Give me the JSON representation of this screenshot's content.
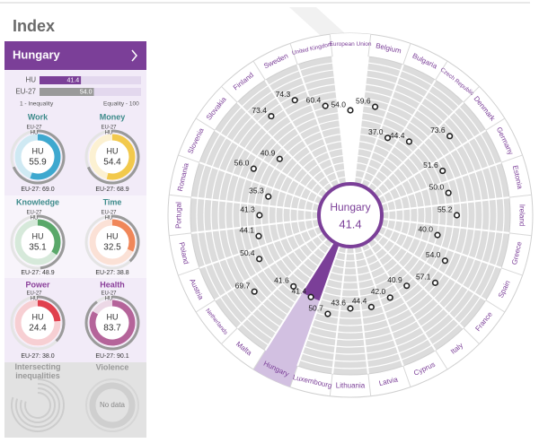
{
  "page": {
    "title": "Index"
  },
  "sidebar": {
    "country": "Hungary",
    "comparison": {
      "categories": [
        "HU",
        "EU-27"
      ],
      "values": [
        41.4,
        54.0
      ],
      "value_labels": [
        "41.4",
        "54.0"
      ],
      "colors": [
        "#7b3f98",
        "#9a9a9a"
      ],
      "xlim": [
        1,
        100
      ],
      "min_label": "1 - Inequality",
      "max_label": "Equality - 100"
    },
    "domains": [
      {
        "name": "Work",
        "color": "#3ea8cf",
        "hu_label": "HU",
        "eu_label": "EU-27",
        "value": 55.9,
        "eu_value": 69.0,
        "eu_value_label": "EU-27: 69.0"
      },
      {
        "name": "Money",
        "color": "#f2c94c",
        "hu_label": "HU",
        "eu_label": "EU-27",
        "value": 54.4,
        "eu_value": 68.9,
        "eu_value_label": "EU-27: 68.9"
      },
      {
        "name": "Knowledge",
        "color": "#5aa86a",
        "hu_label": "HU",
        "eu_label": "EU-27",
        "value": 35.1,
        "eu_value": 48.9,
        "eu_value_label": "EU-27: 48.9"
      },
      {
        "name": "Time",
        "color": "#f0875a",
        "hu_label": "HU",
        "eu_label": "EU-27",
        "value": 32.5,
        "eu_value": 38.8,
        "eu_value_label": "EU-27: 38.8"
      },
      {
        "name": "Power",
        "color": "#e0404e",
        "hu_label": "HU",
        "eu_label": "EU-27",
        "value": 24.4,
        "eu_value": 38.0,
        "eu_value_label": "EU-27: 38.0"
      },
      {
        "name": "Health",
        "color": "#b5649a",
        "hu_label": "HU",
        "eu_label": "EU-27",
        "value": 83.7,
        "eu_value": 90.1,
        "eu_value_label": "EU-27: 90.1"
      },
      {
        "name": "Intersecting inequalities"
      },
      {
        "name": "Violence",
        "no_data": "No data"
      }
    ]
  },
  "chart_data": {
    "type": "radial",
    "categories": [
      "European Union",
      "Belgium",
      "Bulgaria",
      "Czech Republic",
      "Denmark",
      "Germany",
      "Estonia",
      "Ireland",
      "Greece",
      "Spain",
      "France",
      "Italy",
      "Cyprus",
      "Latvia",
      "Lithuania",
      "Luxembourg",
      "Hungary",
      "Malta",
      "Netherlands",
      "Austria",
      "Poland",
      "Portugal",
      "Romania",
      "Slovenia",
      "Slovakia",
      "Finland",
      "Sweden",
      "United Kingdom"
    ],
    "values": [
      54.0,
      59.6,
      37.0,
      44.4,
      73.6,
      51.6,
      50.0,
      55.2,
      40.0,
      54.0,
      57.1,
      40.9,
      42.0,
      44.4,
      43.6,
      50.7,
      41.4,
      41.6,
      69.7,
      50.4,
      44.1,
      41.3,
      35.3,
      56.0,
      40.9,
      73.4,
      74.3,
      60.4
    ],
    "value_labels": [
      "54.0",
      "59.6",
      "37.0",
      "44.4",
      "73.6",
      "51.6",
      "50.0",
      "55.2",
      "40.0",
      "54.0",
      "57.1",
      "40.9",
      "42.0",
      "44.4",
      "43.6",
      "50.7",
      "41.4",
      "41.6",
      "69.7",
      "50.4",
      "44.1",
      "41.3",
      "35.3",
      "56.0",
      "40.9",
      "73.4",
      "74.3",
      "60.4"
    ],
    "rlim": [
      0,
      100
    ],
    "color": "#7b3f98"
  }
}
